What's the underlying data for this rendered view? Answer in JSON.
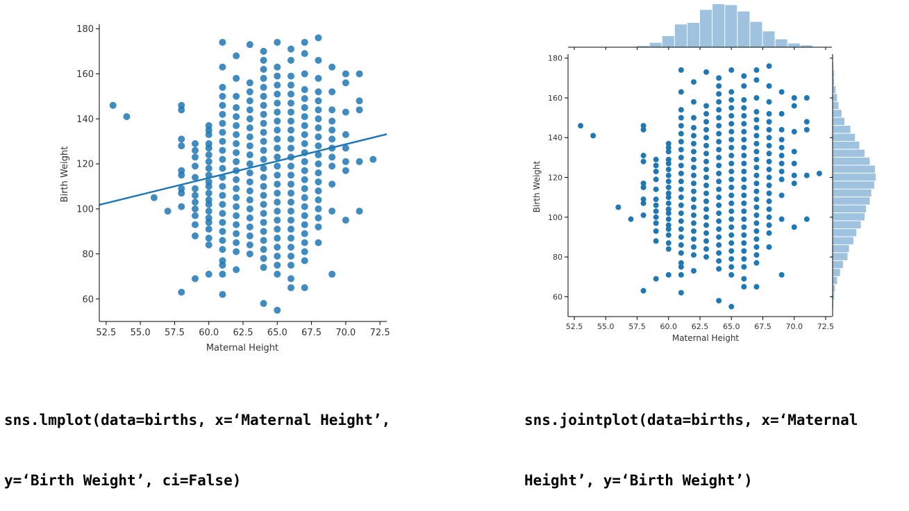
{
  "code": {
    "lmplot": {
      "line1": "sns.lmplot(data=births, x=‘Maternal Height’,",
      "line2": "y=‘Birth Weight’, ci=False)"
    },
    "jointplot": {
      "line1": "sns.jointplot(data=births, x=‘Maternal",
      "line2": "Height’, y=‘Birth Weight’)"
    }
  },
  "colors": {
    "point": "#1f77b4",
    "hist": "#9fc2df",
    "axis": "#000000",
    "tick_text": "#333333"
  },
  "chart_data": [
    {
      "type": "scatter",
      "title": "",
      "xlabel": "Maternal Height",
      "ylabel": "Birth Weight",
      "xlim": [
        52,
        73
      ],
      "ylim": [
        50,
        182
      ],
      "xticks": [
        "52.5",
        "55.0",
        "57.5",
        "60.0",
        "62.5",
        "65.0",
        "67.5",
        "70.0",
        "72.5"
      ],
      "yticks": [
        "60",
        "80",
        "100",
        "120",
        "140",
        "160",
        "180"
      ],
      "regression_line": {
        "x": [
          52,
          73
        ],
        "y": [
          101.8,
          133.2
        ]
      },
      "points": [
        [
          53,
          146
        ],
        [
          54,
          141
        ],
        [
          56,
          105
        ],
        [
          57,
          99
        ],
        [
          58,
          63
        ],
        [
          58,
          101
        ],
        [
          58,
          107
        ],
        [
          58,
          109
        ],
        [
          58,
          115
        ],
        [
          58,
          117
        ],
        [
          58,
          128
        ],
        [
          58,
          131
        ],
        [
          58,
          144
        ],
        [
          58,
          146
        ],
        [
          59,
          69
        ],
        [
          59,
          88
        ],
        [
          59,
          93
        ],
        [
          59,
          97
        ],
        [
          59,
          100
        ],
        [
          59,
          103
        ],
        [
          59,
          106
        ],
        [
          59,
          109
        ],
        [
          59,
          114
        ],
        [
          59,
          119
        ],
        [
          59,
          123
        ],
        [
          59,
          126
        ],
        [
          59,
          129
        ],
        [
          60,
          71
        ],
        [
          60,
          84
        ],
        [
          60,
          87
        ],
        [
          60,
          91
        ],
        [
          60,
          94
        ],
        [
          60,
          96
        ],
        [
          60,
          99
        ],
        [
          60,
          102
        ],
        [
          60,
          104
        ],
        [
          60,
          107
        ],
        [
          60,
          110
        ],
        [
          60,
          112
        ],
        [
          60,
          115
        ],
        [
          60,
          118
        ],
        [
          60,
          121
        ],
        [
          60,
          124
        ],
        [
          60,
          127
        ],
        [
          60,
          129
        ],
        [
          60,
          133
        ],
        [
          60,
          135
        ],
        [
          60,
          137
        ],
        [
          61,
          62
        ],
        [
          61,
          71
        ],
        [
          61,
          75
        ],
        [
          61,
          77
        ],
        [
          61,
          82
        ],
        [
          61,
          86
        ],
        [
          61,
          90
        ],
        [
          61,
          94
        ],
        [
          61,
          98
        ],
        [
          61,
          102
        ],
        [
          61,
          106
        ],
        [
          61,
          110
        ],
        [
          61,
          114
        ],
        [
          61,
          118
        ],
        [
          61,
          122
        ],
        [
          61,
          126
        ],
        [
          61,
          130
        ],
        [
          61,
          134
        ],
        [
          61,
          138
        ],
        [
          61,
          142
        ],
        [
          61,
          146
        ],
        [
          61,
          150
        ],
        [
          61,
          154
        ],
        [
          61,
          163
        ],
        [
          61,
          174
        ],
        [
          62,
          73
        ],
        [
          62,
          81
        ],
        [
          62,
          85
        ],
        [
          62,
          89
        ],
        [
          62,
          93
        ],
        [
          62,
          97
        ],
        [
          62,
          101
        ],
        [
          62,
          105
        ],
        [
          62,
          109
        ],
        [
          62,
          113
        ],
        [
          62,
          117
        ],
        [
          62,
          121
        ],
        [
          62,
          125
        ],
        [
          62,
          129
        ],
        [
          62,
          133
        ],
        [
          62,
          137
        ],
        [
          62,
          141
        ],
        [
          62,
          145
        ],
        [
          62,
          150
        ],
        [
          62,
          158
        ],
        [
          62,
          168
        ],
        [
          63,
          80
        ],
        [
          63,
          84
        ],
        [
          63,
          88
        ],
        [
          63,
          92
        ],
        [
          63,
          96
        ],
        [
          63,
          100
        ],
        [
          63,
          104
        ],
        [
          63,
          108
        ],
        [
          63,
          112
        ],
        [
          63,
          116
        ],
        [
          63,
          120
        ],
        [
          63,
          124
        ],
        [
          63,
          128
        ],
        [
          63,
          132
        ],
        [
          63,
          136
        ],
        [
          63,
          140
        ],
        [
          63,
          144
        ],
        [
          63,
          148
        ],
        [
          63,
          152
        ],
        [
          63,
          156
        ],
        [
          63,
          173
        ],
        [
          64,
          58
        ],
        [
          64,
          74
        ],
        [
          64,
          78
        ],
        [
          64,
          82
        ],
        [
          64,
          86
        ],
        [
          64,
          90
        ],
        [
          64,
          94
        ],
        [
          64,
          98
        ],
        [
          64,
          102
        ],
        [
          64,
          106
        ],
        [
          64,
          110
        ],
        [
          64,
          114
        ],
        [
          64,
          118
        ],
        [
          64,
          122
        ],
        [
          64,
          126
        ],
        [
          64,
          130
        ],
        [
          64,
          134
        ],
        [
          64,
          138
        ],
        [
          64,
          142
        ],
        [
          64,
          146
        ],
        [
          64,
          150
        ],
        [
          64,
          154
        ],
        [
          64,
          158
        ],
        [
          64,
          162
        ],
        [
          64,
          166
        ],
        [
          64,
          170
        ],
        [
          65,
          55
        ],
        [
          65,
          71
        ],
        [
          65,
          75
        ],
        [
          65,
          79
        ],
        [
          65,
          83
        ],
        [
          65,
          87
        ],
        [
          65,
          91
        ],
        [
          65,
          95
        ],
        [
          65,
          99
        ],
        [
          65,
          103
        ],
        [
          65,
          107
        ],
        [
          65,
          111
        ],
        [
          65,
          115
        ],
        [
          65,
          119
        ],
        [
          65,
          123
        ],
        [
          65,
          127
        ],
        [
          65,
          131
        ],
        [
          65,
          135
        ],
        [
          65,
          139
        ],
        [
          65,
          143
        ],
        [
          65,
          147
        ],
        [
          65,
          151
        ],
        [
          65,
          155
        ],
        [
          65,
          159
        ],
        [
          65,
          163
        ],
        [
          65,
          174
        ],
        [
          66,
          65
        ],
        [
          66,
          69
        ],
        [
          66,
          75
        ],
        [
          66,
          79
        ],
        [
          66,
          83
        ],
        [
          66,
          87
        ],
        [
          66,
          91
        ],
        [
          66,
          95
        ],
        [
          66,
          99
        ],
        [
          66,
          103
        ],
        [
          66,
          107
        ],
        [
          66,
          111
        ],
        [
          66,
          115
        ],
        [
          66,
          119
        ],
        [
          66,
          123
        ],
        [
          66,
          127
        ],
        [
          66,
          131
        ],
        [
          66,
          135
        ],
        [
          66,
          139
        ],
        [
          66,
          143
        ],
        [
          66,
          147
        ],
        [
          66,
          151
        ],
        [
          66,
          155
        ],
        [
          66,
          159
        ],
        [
          66,
          166
        ],
        [
          66,
          171
        ],
        [
          67,
          65
        ],
        [
          67,
          77
        ],
        [
          67,
          81
        ],
        [
          67,
          85
        ],
        [
          67,
          89
        ],
        [
          67,
          93
        ],
        [
          67,
          97
        ],
        [
          67,
          101
        ],
        [
          67,
          105
        ],
        [
          67,
          109
        ],
        [
          67,
          113
        ],
        [
          67,
          117
        ],
        [
          67,
          121
        ],
        [
          67,
          125
        ],
        [
          67,
          129
        ],
        [
          67,
          133
        ],
        [
          67,
          137
        ],
        [
          67,
          141
        ],
        [
          67,
          145
        ],
        [
          67,
          149
        ],
        [
          67,
          153
        ],
        [
          67,
          160
        ],
        [
          67,
          169
        ],
        [
          67,
          174
        ],
        [
          68,
          85
        ],
        [
          68,
          92
        ],
        [
          68,
          96
        ],
        [
          68,
          100
        ],
        [
          68,
          104
        ],
        [
          68,
          108
        ],
        [
          68,
          112
        ],
        [
          68,
          116
        ],
        [
          68,
          120
        ],
        [
          68,
          124
        ],
        [
          68,
          128
        ],
        [
          68,
          132
        ],
        [
          68,
          136
        ],
        [
          68,
          140
        ],
        [
          68,
          144
        ],
        [
          68,
          148
        ],
        [
          68,
          152
        ],
        [
          68,
          158
        ],
        [
          68,
          166
        ],
        [
          68,
          176
        ],
        [
          69,
          71
        ],
        [
          69,
          99
        ],
        [
          69,
          111
        ],
        [
          69,
          119
        ],
        [
          69,
          123
        ],
        [
          69,
          127
        ],
        [
          69,
          131
        ],
        [
          69,
          135
        ],
        [
          69,
          139
        ],
        [
          69,
          144
        ],
        [
          69,
          152
        ],
        [
          69,
          163
        ],
        [
          70,
          95
        ],
        [
          70,
          117
        ],
        [
          70,
          121
        ],
        [
          70,
          127
        ],
        [
          70,
          133
        ],
        [
          70,
          143
        ],
        [
          70,
          156
        ],
        [
          70,
          160
        ],
        [
          71,
          99
        ],
        [
          71,
          121
        ],
        [
          71,
          144
        ],
        [
          71,
          148
        ],
        [
          71,
          160
        ],
        [
          72,
          122
        ]
      ]
    },
    {
      "type": "scatter",
      "title": "",
      "xlabel": "Maternal Height",
      "ylabel": "Birth Weight",
      "xlim": [
        52,
        73
      ],
      "ylim": [
        50,
        182
      ],
      "xticks": [
        "52.5",
        "55.0",
        "57.5",
        "60.0",
        "62.5",
        "65.0",
        "67.5",
        "70.0",
        "72.5"
      ],
      "yticks": [
        "60",
        "80",
        "100",
        "120",
        "140",
        "160",
        "180"
      ],
      "same_points_as_left": true,
      "marginal_x_hist": {
        "bins": [
          [
            52.5,
            53.5
          ],
          [
            53.5,
            54.5
          ],
          [
            55.5,
            56.5
          ],
          [
            56.5,
            57.5
          ],
          [
            57.5,
            58.5
          ],
          [
            58.5,
            59.5
          ],
          [
            59.5,
            60.5
          ],
          [
            60.5,
            61.5
          ],
          [
            61.5,
            62.5
          ],
          [
            62.5,
            63.5
          ],
          [
            63.5,
            64.5
          ],
          [
            64.5,
            65.5
          ],
          [
            65.5,
            66.5
          ],
          [
            66.5,
            67.5
          ],
          [
            67.5,
            68.5
          ],
          [
            68.5,
            69.5
          ],
          [
            69.5,
            70.5
          ],
          [
            70.5,
            71.5
          ],
          [
            71.5,
            72.5
          ]
        ],
        "counts": [
          1,
          1,
          1,
          1,
          4,
          14,
          35,
          72,
          77,
          118,
          136,
          133,
          113,
          80,
          50,
          25,
          12,
          6,
          1
        ]
      },
      "marginal_y_hist": {
        "bins": [
          [
            54,
            58
          ],
          [
            58,
            62
          ],
          [
            62,
            66
          ],
          [
            66,
            70
          ],
          [
            70,
            74
          ],
          [
            74,
            78
          ],
          [
            78,
            82
          ],
          [
            82,
            86
          ],
          [
            86,
            90
          ],
          [
            90,
            94
          ],
          [
            94,
            98
          ],
          [
            98,
            102
          ],
          [
            102,
            106
          ],
          [
            106,
            110
          ],
          [
            110,
            114
          ],
          [
            114,
            118
          ],
          [
            118,
            122
          ],
          [
            122,
            126
          ],
          [
            126,
            130
          ],
          [
            130,
            134
          ],
          [
            134,
            138
          ],
          [
            138,
            142
          ],
          [
            142,
            146
          ],
          [
            146,
            150
          ],
          [
            150,
            154
          ],
          [
            154,
            158
          ],
          [
            158,
            162
          ],
          [
            162,
            166
          ],
          [
            166,
            170
          ],
          [
            170,
            174
          ],
          [
            174,
            178
          ]
        ],
        "counts": [
          1,
          2,
          3,
          6,
          10,
          14,
          20,
          22,
          28,
          32,
          38,
          43,
          45,
          50,
          52,
          56,
          58,
          57,
          50,
          43,
          36,
          30,
          24,
          16,
          12,
          8,
          6,
          4,
          2,
          2,
          1
        ]
      }
    }
  ]
}
